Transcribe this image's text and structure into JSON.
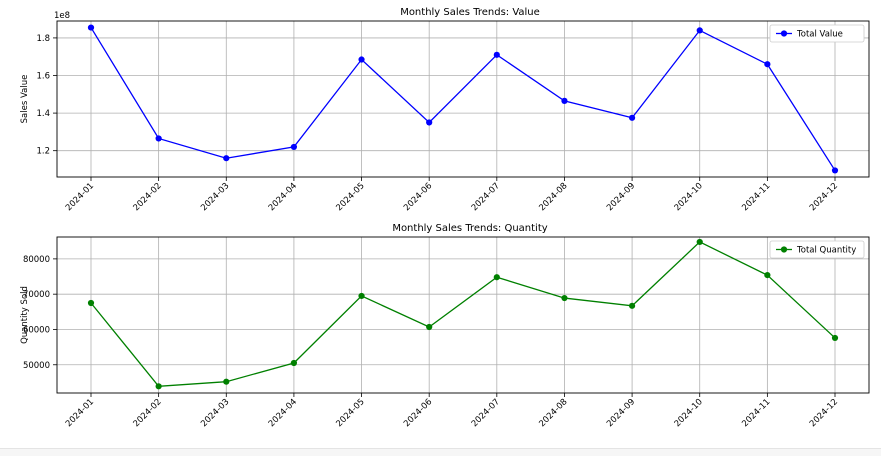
{
  "chart_data": [
    {
      "type": "line",
      "title": "Monthly Sales Trends: Value",
      "xlabel": "",
      "ylabel": "Sales Value",
      "y_offset_label": "1e8",
      "categories": [
        "2024-01",
        "2024-02",
        "2024-03",
        "2024-04",
        "2024-05",
        "2024-06",
        "2024-07",
        "2024-08",
        "2024-09",
        "2024-10",
        "2024-11",
        "2024-12"
      ],
      "y_ticks": [
        1.2,
        1.4,
        1.6,
        1.8
      ],
      "y_tick_labels": [
        "1.2",
        "1.4",
        "1.6",
        "1.8"
      ],
      "ylim": [
        1.06,
        1.89
      ],
      "grid": true,
      "legend_position": "top-right",
      "series": [
        {
          "name": "Total Value",
          "color": "#0000ff",
          "marker": "circle",
          "values": [
            1.855,
            1.265,
            1.16,
            1.22,
            1.685,
            1.35,
            1.71,
            1.465,
            1.375,
            1.84,
            1.66,
            1.095
          ]
        }
      ]
    },
    {
      "type": "line",
      "title": "Monthly Sales Trends: Quantity",
      "xlabel": "",
      "ylabel": "Quantity Sold",
      "y_offset_label": "",
      "categories": [
        "2024-01",
        "2024-02",
        "2024-03",
        "2024-04",
        "2024-05",
        "2024-06",
        "2024-07",
        "2024-08",
        "2024-09",
        "2024-10",
        "2024-11",
        "2024-12"
      ],
      "y_ticks": [
        50000,
        60000,
        70000,
        80000
      ],
      "y_tick_labels": [
        "50000",
        "60000",
        "70000",
        "80000"
      ],
      "ylim": [
        42000,
        86200
      ],
      "grid": true,
      "legend_position": "top-right",
      "series": [
        {
          "name": "Total Quantity",
          "color": "#008000",
          "marker": "circle",
          "values": [
            67500,
            43900,
            45200,
            50500,
            69500,
            60700,
            74800,
            68900,
            66700,
            84800,
            75400,
            57600
          ]
        }
      ]
    }
  ]
}
